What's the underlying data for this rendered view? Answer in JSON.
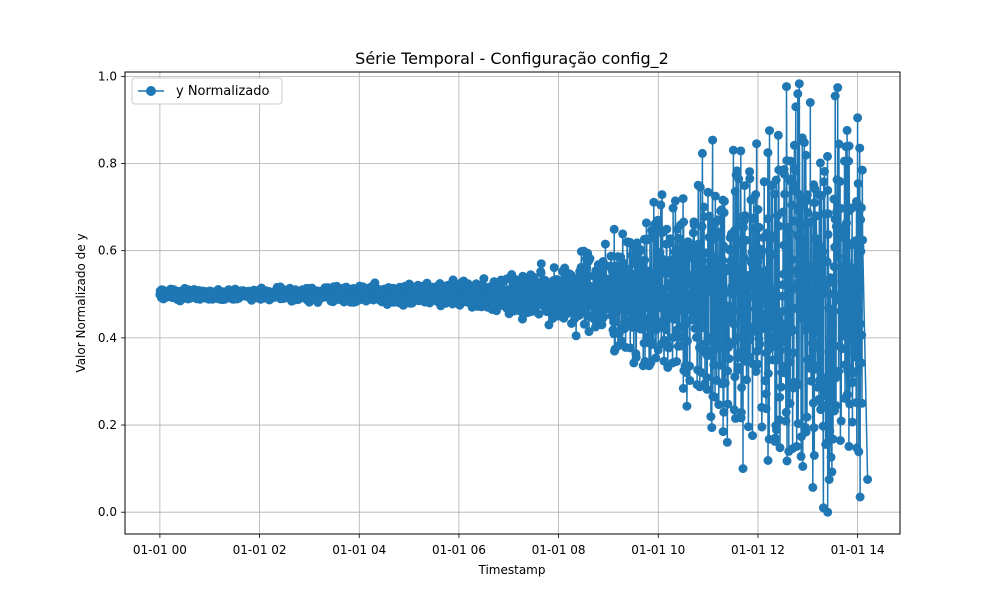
{
  "chart_data": {
    "type": "line",
    "title": "Série Temporal - Configuração config_2",
    "xlabel": "Timestamp",
    "ylabel": "Valor Normalizado de y",
    "x_ticks": [
      "01-01 00",
      "01-01 02",
      "01-01 04",
      "01-01 06",
      "01-01 08",
      "01-01 10",
      "01-01 12",
      "01-01 14"
    ],
    "y_ticks": [
      "0.0",
      "0.2",
      "0.4",
      "0.6",
      "0.8",
      "1.0"
    ],
    "xlim_hours": [
      -0.7,
      14.85
    ],
    "ylim": [
      -0.05,
      1.01
    ],
    "grid": true,
    "legend_position": "top-left",
    "series": [
      {
        "name": "y Normalizado",
        "color": "#1f77b4",
        "marker": "circle",
        "x_range_hours": [
          0,
          14.1
        ],
        "center": 0.5,
        "envelope_hours": [
          0,
          2,
          4,
          6,
          7,
          8,
          9,
          9.5,
          10,
          11,
          12,
          13,
          14.1
        ],
        "envelope_halfwidth": [
          0.012,
          0.012,
          0.02,
          0.03,
          0.04,
          0.07,
          0.12,
          0.15,
          0.22,
          0.29,
          0.38,
          0.46,
          0.46
        ],
        "highlights": [
          {
            "x": 12.8,
            "y": 0.96
          },
          {
            "x": 13.55,
            "y": 0.955
          },
          {
            "x": 14.0,
            "y": 0.905
          },
          {
            "x": 13.4,
            "y": 0.0
          },
          {
            "x": 14.05,
            "y": 0.035
          },
          {
            "x": 10.05,
            "y": 0.705
          },
          {
            "x": 10.8,
            "y": 0.75
          },
          {
            "x": 11.3,
            "y": 0.185
          },
          {
            "x": 11.7,
            "y": 0.1
          },
          {
            "x": 12.2,
            "y": 0.825
          },
          {
            "x": 12.9,
            "y": 0.105
          },
          {
            "x": 13.05,
            "y": 0.94
          },
          {
            "x": 14.2,
            "y": 0.075
          }
        ]
      }
    ]
  }
}
